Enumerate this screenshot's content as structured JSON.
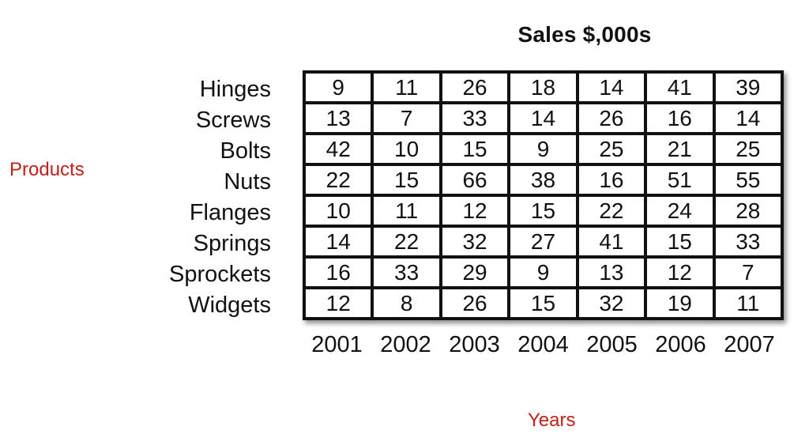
{
  "chart_data": {
    "type": "table",
    "title": "Sales $,000s",
    "ylabel": "Products",
    "xlabel": "Years",
    "rows": [
      "Hinges",
      "Screws",
      "Bolts",
      "Nuts",
      "Flanges",
      "Springs",
      "Sprockets",
      "Widgets"
    ],
    "columns": [
      "2001",
      "2002",
      "2003",
      "2004",
      "2005",
      "2006",
      "2007"
    ],
    "values": [
      [
        9,
        11,
        26,
        18,
        14,
        41,
        39
      ],
      [
        13,
        7,
        33,
        14,
        26,
        16,
        14
      ],
      [
        42,
        10,
        15,
        9,
        25,
        21,
        25
      ],
      [
        22,
        15,
        66,
        38,
        16,
        51,
        55
      ],
      [
        10,
        11,
        12,
        15,
        22,
        24,
        28
      ],
      [
        14,
        22,
        32,
        27,
        41,
        15,
        33
      ],
      [
        16,
        33,
        29,
        9,
        13,
        12,
        7
      ],
      [
        12,
        8,
        26,
        15,
        32,
        19,
        11
      ]
    ]
  },
  "colors": {
    "axis_label": "#c0201a",
    "text": "#111111",
    "grid_line": "#111111"
  }
}
